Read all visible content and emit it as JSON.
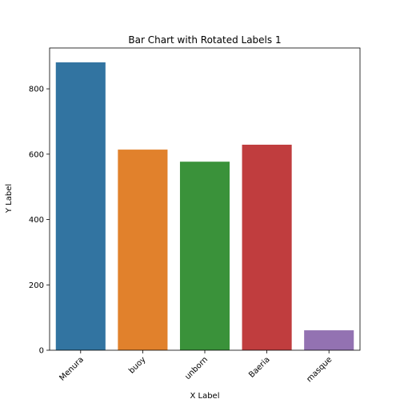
{
  "chart_data": {
    "type": "bar",
    "title": "Bar Chart with Rotated Labels 1",
    "xlabel": "X Label",
    "ylabel": "Y Label",
    "categories": [
      "Menura",
      "buoy",
      "unborn",
      "Baeria",
      "masque"
    ],
    "values": [
      881,
      614,
      577,
      629,
      61
    ],
    "colors": [
      "#3274a1",
      "#e1812c",
      "#3a923a",
      "#c03d3e",
      "#9372b2"
    ],
    "ylim": [
      0,
      925
    ],
    "yticks": [
      0,
      200,
      400,
      600,
      800
    ],
    "grid": false,
    "legend": "none"
  }
}
